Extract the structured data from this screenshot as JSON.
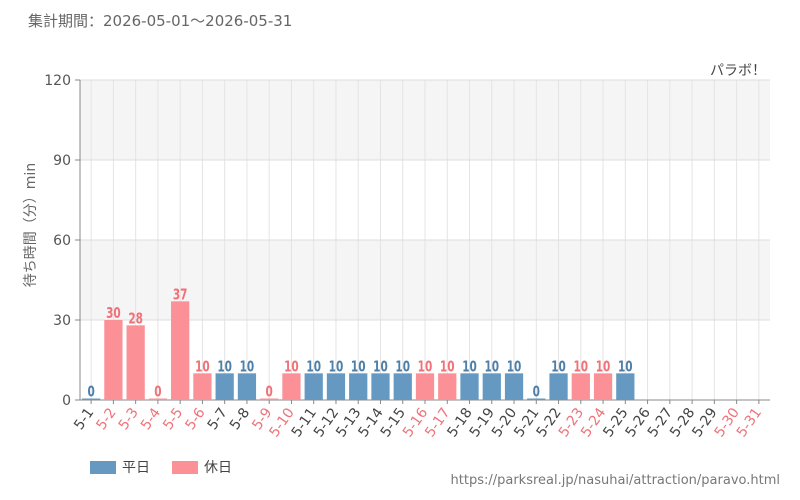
{
  "header": {
    "period": "集計期間：2026-05-01～2026-05-31"
  },
  "chart_data": {
    "type": "bar",
    "attraction": "パラボ！",
    "ylabel": "待ち時間（分）min",
    "ylim": [
      0,
      120
    ],
    "yticks": [
      "0",
      "30",
      "60",
      "90",
      "120"
    ],
    "grid": true,
    "categories": [
      "5-1",
      "5-2",
      "5-3",
      "5-4",
      "5-5",
      "5-6",
      "5-7",
      "5-8",
      "5-9",
      "5-10",
      "5-11",
      "5-12",
      "5-13",
      "5-14",
      "5-15",
      "5-16",
      "5-17",
      "5-18",
      "5-19",
      "5-20",
      "5-21",
      "5-22",
      "5-23",
      "5-24",
      "5-25",
      "5-26",
      "5-27",
      "5-28",
      "5-29",
      "5-30",
      "5-31"
    ],
    "values": [
      0,
      30,
      28,
      0,
      37,
      10,
      10,
      10,
      0,
      10,
      10,
      10,
      10,
      10,
      10,
      10,
      10,
      10,
      10,
      10,
      0,
      10,
      10,
      10,
      10,
      null,
      null,
      null,
      null,
      null,
      null
    ],
    "day_type": [
      "weekday",
      "holiday",
      "holiday",
      "holiday",
      "holiday",
      "holiday",
      "weekday",
      "weekday",
      "holiday",
      "holiday",
      "weekday",
      "weekday",
      "weekday",
      "weekday",
      "weekday",
      "holiday",
      "holiday",
      "weekday",
      "weekday",
      "weekday",
      "weekday",
      "weekday",
      "holiday",
      "holiday",
      "weekday",
      "weekday",
      "weekday",
      "weekday",
      "weekday",
      "holiday",
      "holiday"
    ],
    "series": [
      {
        "name": "平日",
        "color": "#6699c2",
        "label_color": "#4d7fa8"
      },
      {
        "name": "休日",
        "color": "#fb9196",
        "label_color": "#f07278"
      }
    ],
    "legend_position": "bottom-left"
  },
  "footer": {
    "source": "https://parksreal.jp/nasuhai/attraction/paravo.html"
  }
}
